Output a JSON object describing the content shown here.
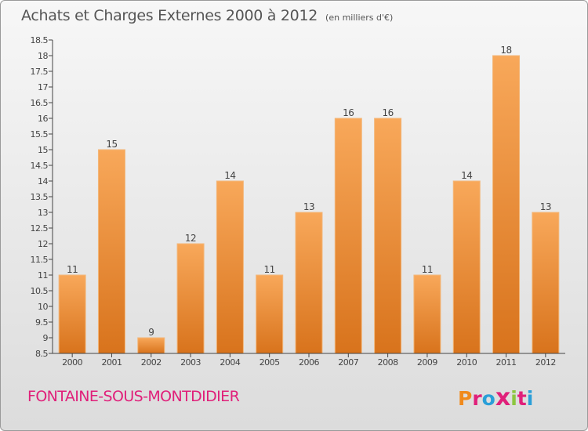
{
  "header": {
    "title": "Achats et Charges Externes 2000 à 2012",
    "subtitle": "(en milliers d'€)"
  },
  "footer": {
    "place": "FONTAINE-SOUS-MONTDIDIER",
    "brand": "Proxiti",
    "brand_colors": [
      "#f08a1c",
      "#e0207a",
      "#2a9fd8",
      "#e0207a",
      "#8cc63f",
      "#e0207a",
      "#2a9fd8"
    ]
  },
  "colors": {
    "bar_light": "#f8a85a",
    "bar_dark": "#d8731c",
    "axis": "#444444",
    "grid": "#c9c9c9",
    "text": "#444444"
  },
  "chart_data": {
    "type": "bar",
    "title": "Achats et Charges Externes 2000 à 2012",
    "subtitle": "(en milliers d'€)",
    "categories": [
      "2000",
      "2001",
      "2002",
      "2003",
      "2004",
      "2005",
      "2006",
      "2007",
      "2008",
      "2009",
      "2010",
      "2011",
      "2012"
    ],
    "values": [
      11,
      15,
      9,
      12,
      14,
      11,
      13,
      16,
      16,
      11,
      14,
      18,
      13
    ],
    "data_labels": [
      "11",
      "15",
      "9",
      "12",
      "14",
      "11",
      "13",
      "16",
      "16",
      "11",
      "14",
      "18",
      "13"
    ],
    "ylim": [
      8.5,
      18.5
    ],
    "yticks": [
      "8.5",
      "9",
      "9.5",
      "10",
      "10.5",
      "11",
      "11.5",
      "12",
      "12.5",
      "13",
      "13.5",
      "14",
      "14.5",
      "15",
      "15.5",
      "16",
      "16.5",
      "17",
      "17.5",
      "18",
      "18.5"
    ],
    "xlabel": "",
    "ylabel": "",
    "grid": false,
    "legend": "none"
  }
}
